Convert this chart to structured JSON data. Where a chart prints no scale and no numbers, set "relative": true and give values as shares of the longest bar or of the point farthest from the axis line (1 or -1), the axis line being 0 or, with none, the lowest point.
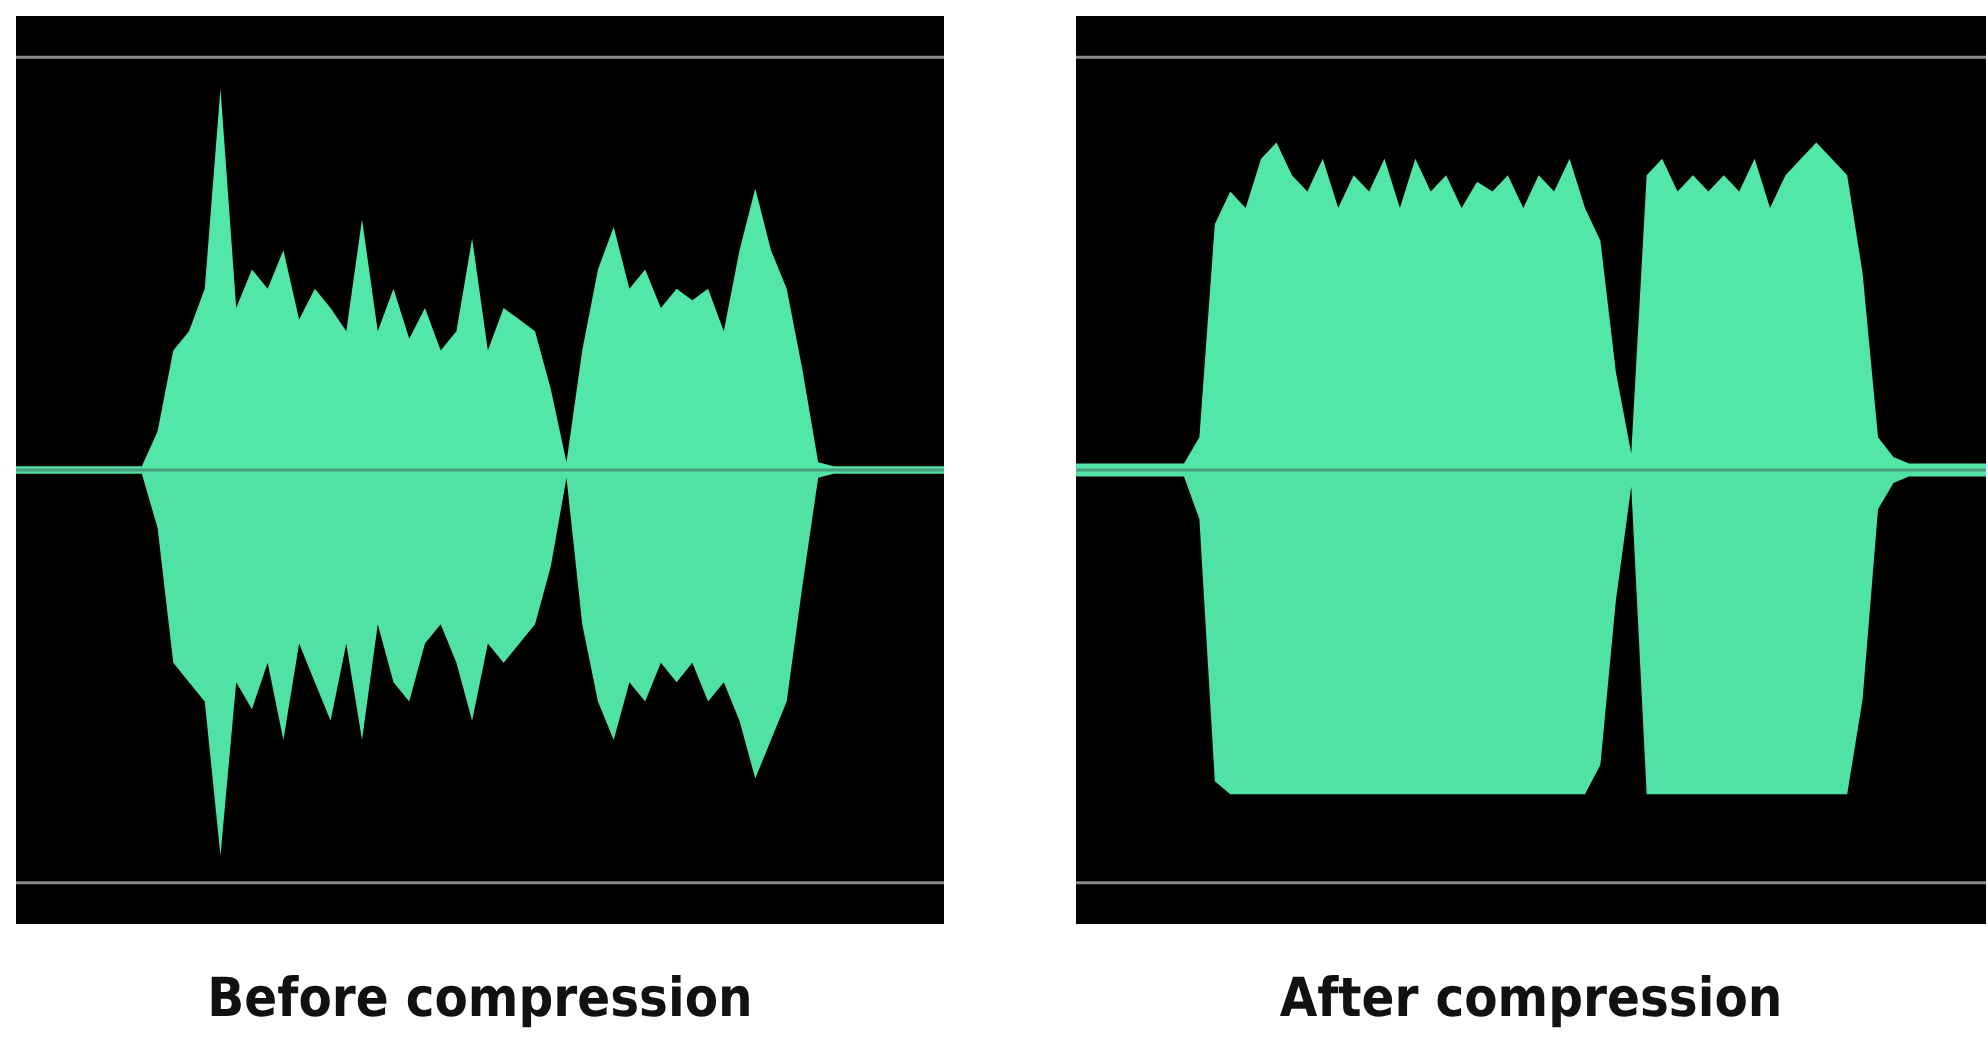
{
  "chart_data": [
    {
      "type": "area",
      "title": "Before compression",
      "relative": true,
      "categories": [
        null,
        null,
        null,
        null,
        null,
        null,
        null,
        null,
        null,
        null,
        null,
        null,
        null,
        null,
        null,
        null,
        null,
        null,
        null,
        null,
        null,
        null,
        null,
        null,
        null,
        null,
        null,
        null,
        null,
        null,
        null,
        null,
        null,
        null,
        null,
        null,
        null,
        null,
        null,
        null,
        null,
        null,
        null,
        null,
        null,
        null,
        null,
        null,
        null,
        null,
        null,
        null,
        null,
        null,
        null,
        null,
        null,
        null,
        null,
        null
      ],
      "series": [
        {
          "color": "#52e6a8",
          "values": [
            0.01,
            0.01,
            0.01,
            0.01,
            0.01,
            0.01,
            0.01,
            0.01,
            0.01,
            0.1,
            0.31,
            0.36,
            0.47,
            0.99,
            0.42,
            0.52,
            0.47,
            0.57,
            0.39,
            0.47,
            0.42,
            0.36,
            0.65,
            0.36,
            0.47,
            0.34,
            0.42,
            0.31,
            0.36,
            0.6,
            0.31,
            0.42,
            0.39,
            0.36,
            0.21,
            0.02,
            0.31,
            0.52,
            0.63,
            0.47,
            0.52,
            0.42,
            0.47,
            0.44,
            0.47,
            0.36,
            0.57,
            0.73,
            0.57,
            0.47,
            0.26,
            0.02,
            0.01,
            0.01,
            0.01,
            0.01,
            0.01,
            0.01,
            0.01,
            0.01
          ]
        },
        {
          "color": "#4fe2a4",
          "values": [
            -0.01,
            -0.01,
            -0.01,
            -0.01,
            -0.01,
            -0.01,
            -0.01,
            -0.01,
            -0.01,
            -0.15,
            -0.5,
            -0.55,
            -0.6,
            -1,
            -0.55,
            -0.62,
            -0.5,
            -0.7,
            -0.45,
            -0.55,
            -0.65,
            -0.45,
            -0.7,
            -0.4,
            -0.55,
            -0.6,
            -0.45,
            -0.4,
            -0.5,
            -0.65,
            -0.45,
            -0.5,
            -0.45,
            -0.4,
            -0.25,
            -0.02,
            -0.4,
            -0.6,
            -0.7,
            -0.55,
            -0.6,
            -0.5,
            -0.55,
            -0.5,
            -0.6,
            -0.55,
            -0.65,
            -0.8,
            -0.7,
            -0.6,
            -0.3,
            -0.02,
            -0.01,
            -0.01,
            -0.01,
            -0.01,
            -0.01,
            -0.01,
            -0.01,
            -0.01
          ]
        }
      ],
      "ref_lines": [
        {
          "axis": "y",
          "value": 1.07,
          "color": "#8a8a8a"
        },
        {
          "axis": "y",
          "value": -1.07,
          "color": "#8a8a8a"
        }
      ]
    },
    {
      "type": "area",
      "title": "After compression",
      "relative": true,
      "categories": [
        null,
        null,
        null,
        null,
        null,
        null,
        null,
        null,
        null,
        null,
        null,
        null,
        null,
        null,
        null,
        null,
        null,
        null,
        null,
        null,
        null,
        null,
        null,
        null,
        null,
        null,
        null,
        null,
        null,
        null,
        null,
        null,
        null,
        null,
        null,
        null,
        null,
        null,
        null,
        null,
        null,
        null,
        null,
        null,
        null,
        null,
        null,
        null,
        null,
        null,
        null,
        null,
        null,
        null,
        null,
        null,
        null,
        null,
        null,
        null
      ],
      "series": [
        {
          "color": "#52e6a8",
          "values": [
            0.02,
            0.02,
            0.02,
            0.02,
            0.02,
            0.02,
            0.02,
            0.02,
            0.1,
            0.75,
            0.85,
            0.8,
            0.95,
            1,
            0.9,
            0.85,
            0.95,
            0.8,
            0.9,
            0.85,
            0.95,
            0.8,
            0.95,
            0.85,
            0.9,
            0.8,
            0.88,
            0.85,
            0.9,
            0.8,
            0.9,
            0.85,
            0.95,
            0.8,
            0.7,
            0.3,
            0.05,
            0.9,
            0.95,
            0.85,
            0.9,
            0.85,
            0.9,
            0.85,
            0.95,
            0.8,
            0.9,
            0.95,
            1,
            0.95,
            0.9,
            0.6,
            0.1,
            0.04,
            0.02,
            0.02,
            0.02,
            0.02,
            0.02,
            0.02
          ]
        },
        {
          "color": "#4fe2a4",
          "values": [
            -0.02,
            -0.02,
            -0.02,
            -0.02,
            -0.02,
            -0.02,
            -0.02,
            -0.02,
            -0.15,
            -0.95,
            -0.99,
            -0.99,
            -0.99,
            -0.99,
            -0.99,
            -0.99,
            -0.99,
            -0.99,
            -0.99,
            -0.99,
            -0.99,
            -0.99,
            -0.99,
            -0.99,
            -0.99,
            -0.99,
            -0.99,
            -0.99,
            -0.99,
            -0.99,
            -0.99,
            -0.99,
            -0.99,
            -0.99,
            -0.9,
            -0.4,
            -0.05,
            -0.99,
            -0.99,
            -0.99,
            -0.99,
            -0.99,
            -0.99,
            -0.99,
            -0.99,
            -0.99,
            -0.99,
            -0.99,
            -0.99,
            -0.99,
            -0.99,
            -0.7,
            -0.12,
            -0.04,
            -0.02,
            -0.02,
            -0.02,
            -0.02,
            -0.02,
            -0.02
          ]
        }
      ],
      "ref_lines": [
        {
          "axis": "y",
          "value": 1.26,
          "color": "#8a8a8a"
        },
        {
          "axis": "y",
          "value": -1.26,
          "color": "#8a8a8a"
        }
      ]
    }
  ]
}
